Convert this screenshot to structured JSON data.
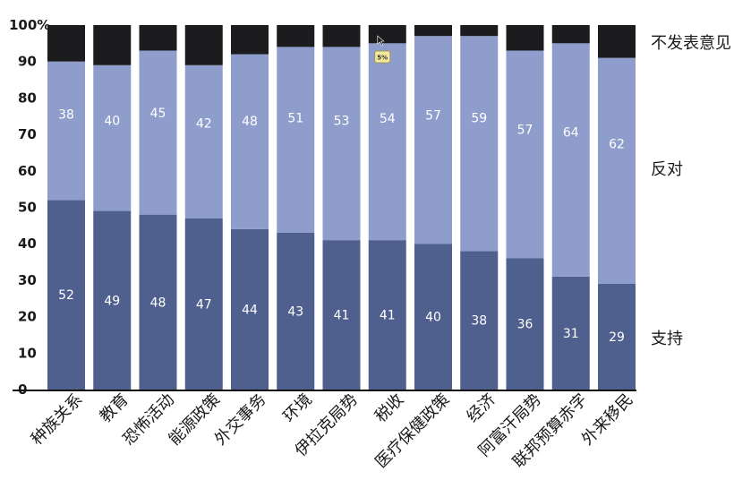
{
  "chart_data": {
    "type": "bar",
    "stacked": true,
    "categories": [
      "种族关系",
      "教育",
      "恐怖活动",
      "能源政策",
      "外交事务",
      "环境",
      "伊拉克局势",
      "税收",
      "医疗保健政策",
      "经济",
      "阿富汗局势",
      "联邦预算赤字",
      "外来移民"
    ],
    "series": [
      {
        "name": "支持",
        "color": "#4f5f8e",
        "values": [
          52,
          49,
          48,
          47,
          44,
          43,
          41,
          41,
          40,
          38,
          36,
          31,
          29
        ]
      },
      {
        "name": "反对",
        "color": "#8e9dcb",
        "values": [
          38,
          40,
          45,
          42,
          48,
          51,
          53,
          54,
          57,
          59,
          57,
          64,
          62
        ]
      },
      {
        "name": "不发表意见",
        "color": "#1c1c1f",
        "values": [
          10,
          11,
          7,
          11,
          8,
          6,
          6,
          5,
          3,
          3,
          7,
          5,
          9
        ]
      }
    ],
    "value_labels": {
      "支持": [
        "52",
        "49",
        "48",
        "47",
        "44",
        "43",
        "41",
        "41",
        "40",
        "38",
        "36",
        "31",
        "29"
      ],
      "反对": [
        "38",
        "40",
        "45",
        "42",
        "48",
        "51",
        "53",
        "54",
        "57",
        "59",
        "57",
        "64",
        "62"
      ]
    },
    "yticks": [
      "0",
      "10",
      "20",
      "30",
      "40",
      "50",
      "60",
      "70",
      "80",
      "90",
      "100%"
    ],
    "ylim": [
      0,
      100
    ],
    "legend_placement": "right",
    "annotation": {
      "category": "税收",
      "text": "5%"
    }
  }
}
